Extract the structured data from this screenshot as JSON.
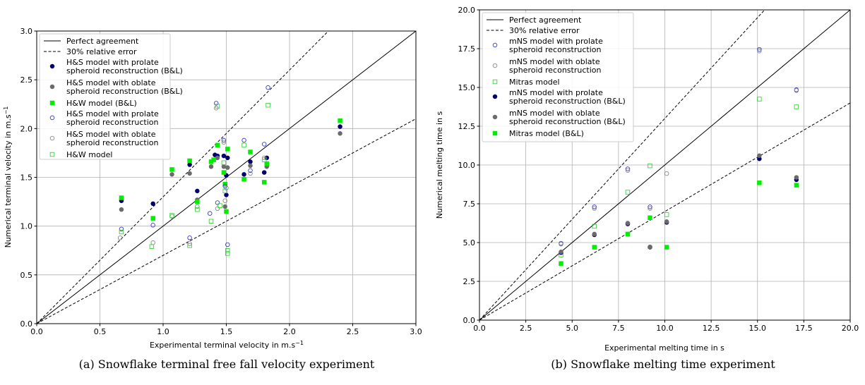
{
  "chart_data": [
    {
      "type": "scatter",
      "caption": "(a) Snowflake terminal free fall velocity experiment",
      "xlabel": "Experimental terminal velocity in m.s",
      "ylabel": "Numerical terminal velocity in m.s",
      "unit_exponent": "−1",
      "xlim": [
        0,
        3.0
      ],
      "ylim": [
        0,
        3.0
      ],
      "xticks": [
        "0.0",
        "0.5",
        "1.0",
        "1.5",
        "2.0",
        "2.5",
        "3.0"
      ],
      "yticks": [
        "0.0",
        "0.5",
        "1.0",
        "1.5",
        "2.0",
        "2.5",
        "3.0"
      ],
      "grid": true,
      "legend_position": "top-left",
      "lines": [
        {
          "name": "Perfect agreement",
          "slope": 1.0,
          "style": "solid"
        },
        {
          "name": "30% relative error",
          "slopes": [
            1.3,
            0.7
          ],
          "style": "dashed"
        }
      ],
      "series": [
        {
          "name": "H&S model with prolate\nspheroid reconstruction (B&L)",
          "marker": "circle",
          "fill": "#00006e",
          "stroke": "#00006e",
          "points": [
            [
              0.67,
              1.26
            ],
            [
              0.92,
              1.23
            ],
            [
              1.21,
              1.63
            ],
            [
              1.27,
              1.36
            ],
            [
              1.41,
              1.73
            ],
            [
              1.43,
              1.72
            ],
            [
              1.48,
              1.72
            ],
            [
              1.5,
              1.32
            ],
            [
              1.5,
              1.52
            ],
            [
              1.51,
              1.7
            ],
            [
              1.64,
              1.53
            ],
            [
              1.69,
              1.66
            ],
            [
              1.8,
              1.55
            ],
            [
              1.82,
              1.7
            ],
            [
              2.4,
              2.02
            ]
          ]
        },
        {
          "name": "H&S model with oblate\nspheroid reconstruction (B&L)",
          "marker": "circle",
          "fill": "#6b6b6b",
          "stroke": "#6b6b6b",
          "points": [
            [
              0.67,
              1.17
            ],
            [
              1.07,
              1.53
            ],
            [
              1.21,
              1.54
            ],
            [
              1.27,
              1.27
            ],
            [
              1.38,
              1.61
            ],
            [
              1.43,
              1.7
            ],
            [
              1.48,
              1.61
            ],
            [
              1.49,
              1.2
            ],
            [
              1.51,
              1.6
            ],
            [
              1.69,
              1.62
            ],
            [
              1.82,
              1.61
            ],
            [
              2.4,
              1.95
            ]
          ]
        },
        {
          "name": "H&W model (B&L)",
          "marker": "square",
          "fill": "#00ee00",
          "stroke": "#00ee00",
          "points": [
            [
              0.67,
              1.29
            ],
            [
              0.92,
              1.08
            ],
            [
              1.07,
              1.58
            ],
            [
              1.21,
              1.67
            ],
            [
              1.27,
              1.25
            ],
            [
              1.38,
              1.66
            ],
            [
              1.4,
              1.68
            ],
            [
              1.43,
              1.83
            ],
            [
              1.48,
              1.55
            ],
            [
              1.49,
              1.43
            ],
            [
              1.5,
              1.15
            ],
            [
              1.51,
              1.79
            ],
            [
              1.64,
              1.48
            ],
            [
              1.69,
              1.76
            ],
            [
              1.8,
              1.45
            ],
            [
              1.82,
              1.64
            ],
            [
              2.4,
              2.08
            ]
          ]
        },
        {
          "name": "H&S model with prolate\nspheroid reconstruction",
          "marker": "circle",
          "fill": "none",
          "stroke": "#3b3bc8",
          "points": [
            [
              0.67,
              0.97
            ],
            [
              0.92,
              1.01
            ],
            [
              1.21,
              0.88
            ],
            [
              1.37,
              1.13
            ],
            [
              1.42,
              2.26
            ],
            [
              1.43,
              1.24
            ],
            [
              1.48,
              1.88
            ],
            [
              1.49,
              1.41
            ],
            [
              1.51,
              0.81
            ],
            [
              1.64,
              1.88
            ],
            [
              1.69,
              1.57
            ],
            [
              1.8,
              1.84
            ],
            [
              1.83,
              2.42
            ]
          ]
        },
        {
          "name": "H&S model with oblate\nspheroid reconstruction",
          "marker": "circle",
          "fill": "none",
          "stroke": "#8a8a8a",
          "points": [
            [
              0.66,
              0.88
            ],
            [
              0.92,
              0.83
            ],
            [
              1.07,
              1.1
            ],
            [
              1.21,
              0.82
            ],
            [
              1.27,
              1.2
            ],
            [
              1.42,
              2.21
            ],
            [
              1.43,
              1.18
            ],
            [
              1.48,
              1.86
            ],
            [
              1.49,
              1.26
            ],
            [
              1.5,
              1.39
            ],
            [
              1.69,
              1.54
            ],
            [
              1.8,
              1.7
            ]
          ]
        },
        {
          "name": "H&W model",
          "marker": "square",
          "fill": "none",
          "stroke": "#3ccf3c",
          "points": [
            [
              0.67,
              0.94
            ],
            [
              0.91,
              0.79
            ],
            [
              1.07,
              1.11
            ],
            [
              1.21,
              0.8
            ],
            [
              1.27,
              1.17
            ],
            [
              1.38,
              1.05
            ],
            [
              1.43,
              2.23
            ],
            [
              1.45,
              1.21
            ],
            [
              1.48,
              1.65
            ],
            [
              1.49,
              1.36
            ],
            [
              1.51,
              0.72
            ],
            [
              1.51,
              0.75
            ],
            [
              1.64,
              1.83
            ],
            [
              1.8,
              1.68
            ],
            [
              1.83,
              2.24
            ]
          ]
        }
      ]
    },
    {
      "type": "scatter",
      "caption": "(b) Snowflake melting time experiment",
      "xlabel": "Experimental melting time in s",
      "ylabel": "Numerical melting time in s",
      "xlim": [
        0,
        20.0
      ],
      "ylim": [
        0,
        20.0
      ],
      "xticks": [
        "0.0",
        "2.5",
        "5.0",
        "7.5",
        "10.0",
        "12.5",
        "15.0",
        "17.5",
        "20.0"
      ],
      "yticks": [
        "0.0",
        "2.5",
        "5.0",
        "7.5",
        "10.0",
        "12.5",
        "15.0",
        "17.5",
        "20.0"
      ],
      "grid": true,
      "legend_position": "top-left",
      "lines": [
        {
          "name": "Perfect agreement",
          "slope": 1.0,
          "style": "solid"
        },
        {
          "name": "30% relative error",
          "slopes": [
            1.3,
            0.7
          ],
          "style": "dashed"
        }
      ],
      "series": [
        {
          "name": "mNS model with prolate\nspheroid reconstruction",
          "marker": "circle",
          "fill": "none",
          "stroke": "#3b3bc8",
          "points": [
            [
              4.4,
              4.95
            ],
            [
              6.2,
              7.3
            ],
            [
              8.0,
              9.75
            ],
            [
              9.2,
              7.3
            ],
            [
              15.1,
              17.45
            ],
            [
              17.1,
              14.85
            ]
          ]
        },
        {
          "name": "mNS model with oblate\nspheroid reconstruction",
          "marker": "circle",
          "fill": "none",
          "stroke": "#8a8a8a",
          "points": [
            [
              4.4,
              4.9
            ],
            [
              6.2,
              7.2
            ],
            [
              8.0,
              9.65
            ],
            [
              9.2,
              7.2
            ],
            [
              10.1,
              9.45
            ],
            [
              15.1,
              17.35
            ],
            [
              17.1,
              14.8
            ]
          ]
        },
        {
          "name": "Mitras model",
          "marker": "square",
          "fill": "none",
          "stroke": "#3ccf3c",
          "points": [
            [
              4.4,
              4.2
            ],
            [
              6.2,
              6.05
            ],
            [
              8.0,
              8.25
            ],
            [
              9.2,
              9.95
            ],
            [
              10.1,
              6.8
            ],
            [
              15.1,
              14.25
            ],
            [
              17.1,
              13.75
            ]
          ]
        },
        {
          "name": "mNS model with prolate\nspheroid reconstruction (B&L)",
          "marker": "circle",
          "fill": "#00006e",
          "stroke": "#00006e",
          "points": [
            [
              4.4,
              4.35
            ],
            [
              6.2,
              5.5
            ],
            [
              8.0,
              6.2
            ],
            [
              9.2,
              4.7
            ],
            [
              10.1,
              6.3
            ],
            [
              15.1,
              10.4
            ],
            [
              17.1,
              9.05
            ]
          ]
        },
        {
          "name": "mNS model with oblate\nspheroid reconstruction (B&L)",
          "marker": "circle",
          "fill": "#6b6b6b",
          "stroke": "#6b6b6b",
          "points": [
            [
              4.4,
              4.4
            ],
            [
              6.2,
              5.55
            ],
            [
              8.0,
              6.25
            ],
            [
              9.2,
              4.72
            ],
            [
              10.1,
              6.35
            ],
            [
              15.1,
              10.6
            ],
            [
              17.1,
              9.2
            ]
          ]
        },
        {
          "name": "Mitras model (B&L)",
          "marker": "square",
          "fill": "#00ee00",
          "stroke": "#00ee00",
          "points": [
            [
              4.4,
              3.65
            ],
            [
              6.2,
              4.7
            ],
            [
              8.0,
              5.55
            ],
            [
              9.2,
              6.6
            ],
            [
              10.1,
              4.7
            ],
            [
              15.1,
              8.85
            ],
            [
              17.1,
              8.7
            ]
          ]
        }
      ]
    }
  ]
}
